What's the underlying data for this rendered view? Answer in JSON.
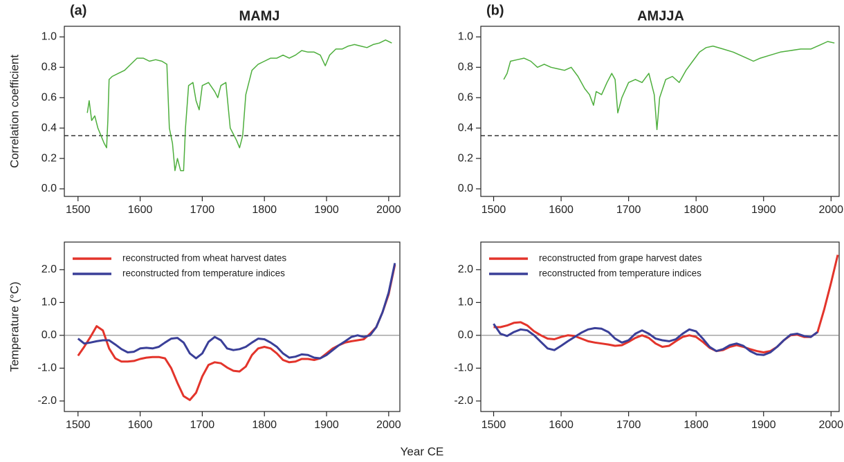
{
  "xlabel": "Year CE",
  "chart_data": [
    {
      "type": "line",
      "label": "(a)",
      "title": "MAMJ",
      "ylabel": "Correlation coefficient",
      "x": [
        1515,
        1518,
        1522,
        1527,
        1532,
        1537,
        1542,
        1546,
        1548,
        1550,
        1555,
        1565,
        1575,
        1585,
        1595,
        1605,
        1615,
        1625,
        1635,
        1643,
        1647,
        1652,
        1656,
        1660,
        1665,
        1670,
        1673,
        1678,
        1685,
        1690,
        1695,
        1700,
        1710,
        1720,
        1725,
        1730,
        1738,
        1745,
        1750,
        1755,
        1760,
        1765,
        1770,
        1780,
        1790,
        1800,
        1810,
        1820,
        1830,
        1840,
        1850,
        1860,
        1870,
        1880,
        1890,
        1898,
        1905,
        1915,
        1925,
        1935,
        1945,
        1955,
        1965,
        1975,
        1985,
        1995,
        2005
      ],
      "series": [
        {
          "name": null,
          "color": "#4dae3c",
          "values": [
            0.5,
            0.58,
            0.45,
            0.48,
            0.4,
            0.35,
            0.3,
            0.27,
            0.45,
            0.72,
            0.74,
            0.76,
            0.78,
            0.82,
            0.86,
            0.86,
            0.84,
            0.85,
            0.84,
            0.82,
            0.4,
            0.3,
            0.12,
            0.2,
            0.12,
            0.12,
            0.4,
            0.68,
            0.7,
            0.58,
            0.52,
            0.68,
            0.7,
            0.64,
            0.6,
            0.68,
            0.7,
            0.4,
            0.36,
            0.32,
            0.27,
            0.35,
            0.62,
            0.78,
            0.82,
            0.84,
            0.86,
            0.86,
            0.88,
            0.86,
            0.88,
            0.91,
            0.9,
            0.9,
            0.88,
            0.81,
            0.88,
            0.92,
            0.92,
            0.94,
            0.95,
            0.94,
            0.93,
            0.95,
            0.96,
            0.98,
            0.96
          ]
        }
      ],
      "hline": 0.35,
      "hline_style": "dashed",
      "xlim": [
        1478,
        2018
      ],
      "xticks": [
        1500,
        1600,
        1700,
        1800,
        1900,
        2000
      ],
      "ylim": [
        -0.05,
        1.07
      ],
      "yticks": [
        {
          "value": 0,
          "label": "0.0"
        },
        0.2,
        0.4,
        0.6,
        0.8,
        {
          "value": 1,
          "label": "1.0"
        }
      ],
      "grid": false
    },
    {
      "type": "line",
      "label": "(b)",
      "title": "AMJJA",
      "x": [
        1515,
        1520,
        1525,
        1535,
        1545,
        1555,
        1565,
        1575,
        1585,
        1595,
        1605,
        1615,
        1625,
        1635,
        1642,
        1648,
        1652,
        1660,
        1668,
        1675,
        1680,
        1684,
        1690,
        1700,
        1710,
        1720,
        1730,
        1738,
        1742,
        1746,
        1755,
        1765,
        1775,
        1785,
        1795,
        1805,
        1815,
        1825,
        1840,
        1855,
        1865,
        1875,
        1885,
        1895,
        1910,
        1925,
        1940,
        1955,
        1970,
        1985,
        1995,
        2005
      ],
      "series": [
        {
          "name": null,
          "color": "#4dae3c",
          "values": [
            0.72,
            0.76,
            0.84,
            0.85,
            0.86,
            0.84,
            0.8,
            0.82,
            0.8,
            0.79,
            0.78,
            0.8,
            0.74,
            0.66,
            0.62,
            0.55,
            0.64,
            0.62,
            0.7,
            0.76,
            0.72,
            0.5,
            0.6,
            0.7,
            0.72,
            0.7,
            0.76,
            0.62,
            0.39,
            0.6,
            0.72,
            0.74,
            0.7,
            0.78,
            0.84,
            0.9,
            0.93,
            0.94,
            0.92,
            0.9,
            0.88,
            0.86,
            0.84,
            0.86,
            0.88,
            0.9,
            0.91,
            0.92,
            0.92,
            0.95,
            0.97,
            0.96
          ]
        }
      ],
      "hline": 0.35,
      "hline_style": "dashed",
      "xlim": [
        1481,
        2012
      ],
      "xticks": [
        1500,
        1600,
        1700,
        1800,
        1900,
        2000
      ],
      "ylim": [
        -0.05,
        1.07
      ],
      "yticks": [
        {
          "value": 0,
          "label": "0.0"
        },
        0.2,
        0.4,
        0.6,
        0.8,
        {
          "value": 1,
          "label": "1.0"
        }
      ],
      "grid": false
    },
    {
      "type": "line",
      "ylabel": "Temperature (°C)",
      "x": [
        1500,
        1510,
        1520,
        1530,
        1540,
        1550,
        1560,
        1570,
        1580,
        1590,
        1600,
        1610,
        1620,
        1630,
        1640,
        1650,
        1660,
        1670,
        1680,
        1690,
        1700,
        1710,
        1720,
        1730,
        1740,
        1750,
        1760,
        1770,
        1780,
        1790,
        1800,
        1810,
        1820,
        1830,
        1840,
        1850,
        1860,
        1870,
        1880,
        1890,
        1900,
        1910,
        1920,
        1930,
        1940,
        1950,
        1960,
        1970,
        1980,
        1990,
        2000,
        2010
      ],
      "series": [
        {
          "name": "reconstructed from wheat harvest dates",
          "color": "#e3342b",
          "values": [
            -0.62,
            -0.35,
            -0.05,
            0.28,
            0.15,
            -0.4,
            -0.7,
            -0.8,
            -0.8,
            -0.78,
            -0.72,
            -0.68,
            -0.66,
            -0.66,
            -0.7,
            -1.0,
            -1.45,
            -1.85,
            -1.97,
            -1.75,
            -1.25,
            -0.9,
            -0.82,
            -0.85,
            -0.98,
            -1.08,
            -1.1,
            -0.95,
            -0.6,
            -0.4,
            -0.35,
            -0.4,
            -0.55,
            -0.75,
            -0.82,
            -0.8,
            -0.72,
            -0.72,
            -0.75,
            -0.7,
            -0.55,
            -0.4,
            -0.3,
            -0.22,
            -0.18,
            -0.15,
            -0.12,
            0.05,
            0.25,
            0.7,
            1.25,
            2.15
          ]
        },
        {
          "name": "reconstructed from temperature indices",
          "color": "#3a3f98",
          "values": [
            -0.1,
            -0.25,
            -0.22,
            -0.18,
            -0.15,
            -0.15,
            -0.28,
            -0.42,
            -0.52,
            -0.5,
            -0.4,
            -0.38,
            -0.4,
            -0.35,
            -0.22,
            -0.1,
            -0.08,
            -0.22,
            -0.55,
            -0.7,
            -0.55,
            -0.2,
            -0.05,
            -0.15,
            -0.4,
            -0.45,
            -0.42,
            -0.35,
            -0.22,
            -0.1,
            -0.12,
            -0.22,
            -0.35,
            -0.55,
            -0.68,
            -0.65,
            -0.58,
            -0.6,
            -0.68,
            -0.7,
            -0.6,
            -0.45,
            -0.3,
            -0.18,
            -0.05,
            0.0,
            -0.05,
            0.0,
            0.25,
            0.7,
            1.3,
            2.2
          ]
        }
      ],
      "hline": 0,
      "hline_style": "solid",
      "legend": "upper left",
      "xlim": [
        1478,
        2018
      ],
      "xticks": [
        1500,
        1600,
        1700,
        1800,
        1900,
        2000
      ],
      "ylim": [
        -2.32,
        2.84
      ],
      "yticks": [
        {
          "value": -2,
          "label": "-2.0"
        },
        {
          "value": -1,
          "label": "-1.0"
        },
        {
          "value": 0,
          "label": "0.0"
        },
        {
          "value": 1,
          "label": "1.0"
        },
        {
          "value": 2,
          "label": "2.0"
        }
      ],
      "grid": false
    },
    {
      "type": "line",
      "x": [
        1500,
        1510,
        1520,
        1530,
        1540,
        1550,
        1560,
        1570,
        1580,
        1590,
        1600,
        1610,
        1620,
        1630,
        1640,
        1650,
        1660,
        1670,
        1680,
        1690,
        1700,
        1710,
        1720,
        1730,
        1740,
        1750,
        1760,
        1770,
        1780,
        1790,
        1800,
        1810,
        1820,
        1830,
        1840,
        1850,
        1860,
        1870,
        1880,
        1890,
        1900,
        1910,
        1920,
        1930,
        1940,
        1950,
        1960,
        1970,
        1980,
        1990,
        2000,
        2010
      ],
      "series": [
        {
          "name": "reconstructed from grape harvest dates",
          "color": "#e3342b",
          "values": [
            0.25,
            0.25,
            0.3,
            0.38,
            0.4,
            0.3,
            0.12,
            0.0,
            -0.1,
            -0.12,
            -0.05,
            0.0,
            -0.02,
            -0.1,
            -0.18,
            -0.22,
            -0.25,
            -0.28,
            -0.32,
            -0.3,
            -0.2,
            -0.08,
            0.0,
            -0.08,
            -0.25,
            -0.35,
            -0.32,
            -0.18,
            -0.05,
            0.0,
            -0.05,
            -0.2,
            -0.38,
            -0.48,
            -0.45,
            -0.35,
            -0.3,
            -0.35,
            -0.42,
            -0.48,
            -0.52,
            -0.48,
            -0.35,
            -0.15,
            0.0,
            0.02,
            -0.05,
            -0.05,
            0.1,
            0.8,
            1.6,
            2.45
          ]
        },
        {
          "name": "reconstructed from temperature indices",
          "color": "#3a3f98",
          "values": [
            0.35,
            0.05,
            -0.02,
            0.1,
            0.18,
            0.15,
            0.0,
            -0.2,
            -0.4,
            -0.45,
            -0.32,
            -0.18,
            -0.05,
            0.08,
            0.18,
            0.22,
            0.2,
            0.1,
            -0.1,
            -0.22,
            -0.15,
            0.05,
            0.15,
            0.05,
            -0.1,
            -0.15,
            -0.18,
            -0.12,
            0.05,
            0.18,
            0.12,
            -0.1,
            -0.35,
            -0.48,
            -0.42,
            -0.3,
            -0.25,
            -0.32,
            -0.48,
            -0.58,
            -0.6,
            -0.52,
            -0.35,
            -0.15,
            0.02,
            0.05,
            -0.02,
            -0.05,
            0.1,
            null,
            null,
            null
          ]
        }
      ],
      "hline": 0,
      "hline_style": "solid",
      "legend": "upper left",
      "xlim": [
        1481,
        2012
      ],
      "xticks": [
        1500,
        1600,
        1700,
        1800,
        1900,
        2000
      ],
      "ylim": [
        -2.32,
        2.84
      ],
      "yticks": [
        {
          "value": -2,
          "label": "-2.0"
        },
        {
          "value": -1,
          "label": "-1.0"
        },
        {
          "value": 0,
          "label": "0.0"
        },
        {
          "value": 1,
          "label": "1.0"
        },
        {
          "value": 2,
          "label": "2.0"
        }
      ],
      "grid": false
    }
  ]
}
